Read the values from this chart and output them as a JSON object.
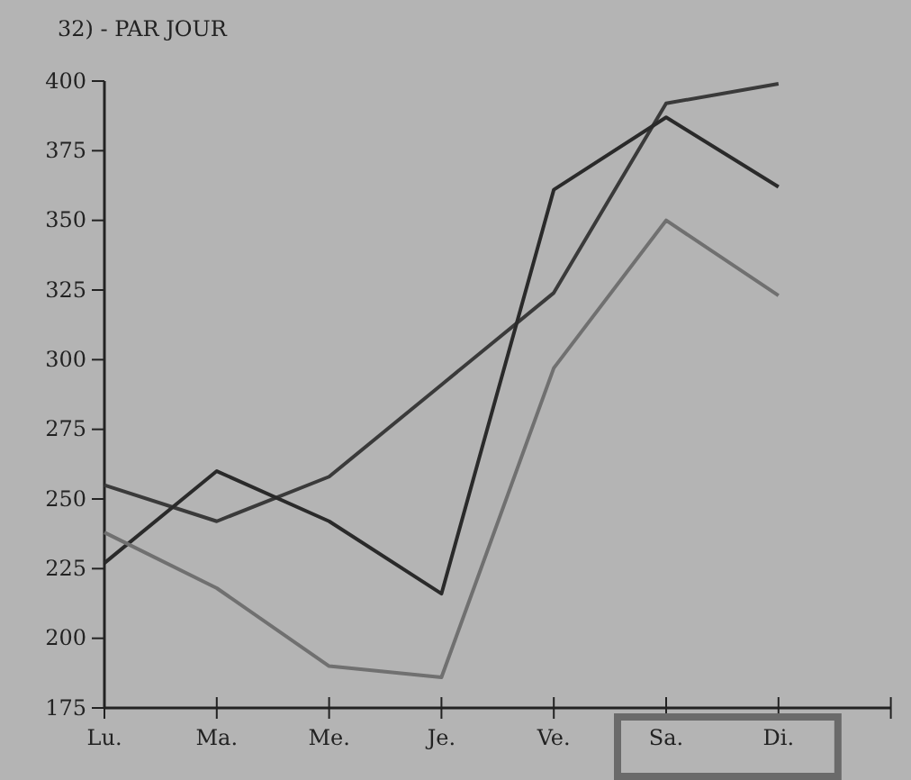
{
  "chart_data": {
    "type": "line",
    "title": "32) - PAR JOUR",
    "categories": [
      "Lu.",
      "Ma.",
      "Me.",
      "Je.",
      "Ve.",
      "Sa.",
      "Di.",
      null
    ],
    "series": [
      {
        "color": "#3a3a3a",
        "values": [
          255,
          242,
          258,
          291,
          324,
          392,
          399,
          null
        ]
      },
      {
        "color": "#2a2a2a",
        "values": [
          227,
          260,
          242,
          216,
          361,
          387,
          362,
          null
        ]
      },
      {
        "color": "#707070",
        "values": [
          238,
          218,
          190,
          186,
          297,
          350,
          323,
          null
        ]
      }
    ],
    "ylim": [
      175,
      400
    ],
    "yticks": [
      175,
      200,
      225,
      250,
      275,
      300,
      325,
      350,
      375,
      400
    ],
    "marker": "none",
    "line_style": "solid"
  }
}
